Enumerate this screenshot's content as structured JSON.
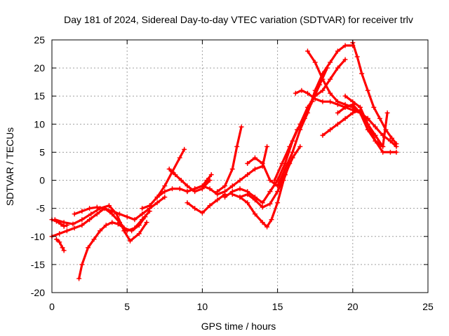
{
  "chart_data": {
    "type": "scatter",
    "title": "Day 181 of 2024, Sidereal Day-to-day VTEC variation (SDTVAR) for receiver trlv",
    "xlabel": "GPS time / hours",
    "ylabel": "SDTVAR / TECUs",
    "xlim": [
      0,
      25
    ],
    "ylim": [
      -20,
      25
    ],
    "xticks": [
      "0",
      "5",
      "10",
      "15",
      "20",
      "25"
    ],
    "yticks": [
      "-20",
      "-15",
      "-10",
      "-5",
      "0",
      "5",
      "10",
      "15",
      "20",
      "25"
    ],
    "grid": true,
    "marker": "+",
    "color": "#ff0000",
    "series": [
      {
        "x": [
          0.0,
          0.3,
          0.6,
          0.8,
          1.0
        ],
        "y": [
          -7,
          -7.3,
          -7.8,
          -8.2,
          -8.0
        ]
      },
      {
        "x": [
          0.3,
          0.5,
          0.7,
          0.8
        ],
        "y": [
          -10.5,
          -11,
          -12,
          -12.5
        ]
      },
      {
        "x": [
          0.0,
          0.5,
          1.0,
          1.5,
          2.0,
          2.5,
          3.0,
          3.5,
          4.0,
          4.5,
          5.0,
          5.5,
          6.0,
          6.5
        ],
        "y": [
          -10,
          -9.5,
          -9,
          -8.5,
          -8,
          -7,
          -6,
          -5,
          -6,
          -7.5,
          -9,
          -8.5,
          -7,
          -5.5
        ]
      },
      {
        "x": [
          0.2,
          0.8,
          1.4,
          2.0,
          2.6,
          3.2,
          3.8,
          4.3,
          4.8,
          5.2,
          5.8,
          6.3
        ],
        "y": [
          -7,
          -7.5,
          -7.8,
          -7,
          -6,
          -5,
          -4.5,
          -6,
          -9,
          -10.8,
          -9.5,
          -7.5
        ]
      },
      {
        "x": [
          1.8,
          2.0,
          2.4,
          2.8,
          3.2,
          3.6,
          4.0,
          4.4,
          4.8,
          5.3,
          5.8,
          6.2
        ],
        "y": [
          -17.5,
          -15,
          -12,
          -10.5,
          -9,
          -8,
          -7.5,
          -7.8,
          -8.5,
          -9,
          -8,
          -6.5
        ]
      },
      {
        "x": [
          1.5,
          2.0,
          2.5,
          3.0,
          3.5,
          4.0,
          4.5,
          5.0,
          5.5,
          6.0,
          6.5,
          7.0,
          7.5
        ],
        "y": [
          -6,
          -5.5,
          -5,
          -4.8,
          -5,
          -5.5,
          -6,
          -6.5,
          -7,
          -6,
          -5,
          -4,
          -3
        ]
      },
      {
        "x": [
          6.0,
          6.5,
          7.0,
          7.5,
          8.0,
          8.5,
          9.0,
          9.5,
          10.0,
          10.5,
          11.0,
          11.5,
          12.0
        ],
        "y": [
          -5,
          -4.5,
          -3,
          -2,
          -1.5,
          -1.5,
          -2,
          -1.5,
          -1,
          -1.5,
          -2.5,
          -2,
          -1
        ]
      },
      {
        "x": [
          7.0,
          7.5,
          8.0,
          8.5,
          8.8
        ],
        "y": [
          -3,
          -1,
          1.5,
          4,
          5.5
        ]
      },
      {
        "x": [
          7.8,
          8.2,
          8.6,
          9.0,
          9.5,
          10.0,
          10.5
        ],
        "y": [
          2,
          1,
          0,
          -1,
          -2,
          -1.5,
          0
        ]
      },
      {
        "x": [
          9.0,
          9.5,
          10.0,
          10.3,
          10.6
        ],
        "y": [
          -2,
          -1.5,
          -1,
          0,
          1
        ]
      },
      {
        "x": [
          9.0,
          9.5,
          10.0,
          10.5,
          11.0,
          11.5
        ],
        "y": [
          -4,
          -5,
          -5.8,
          -4.5,
          -3.5,
          -2.5
        ]
      },
      {
        "x": [
          11.0,
          11.5,
          12.0,
          12.3,
          12.6
        ],
        "y": [
          -2,
          -1,
          2,
          6,
          9.5
        ]
      },
      {
        "x": [
          12.0,
          12.5,
          13.0,
          13.5,
          14.0,
          14.3
        ],
        "y": [
          -1,
          0,
          1,
          2,
          2.5,
          6
        ]
      },
      {
        "x": [
          11.5,
          12.0,
          12.5,
          13.0,
          13.5,
          14.0,
          14.5,
          15.0
        ],
        "y": [
          -3,
          -2,
          -1.5,
          -2,
          -3,
          -4,
          -2,
          0
        ]
      },
      {
        "x": [
          12.0,
          12.5,
          13.0,
          13.5,
          14.0,
          14.3,
          14.6,
          15.0,
          15.4,
          15.8
        ],
        "y": [
          -2.5,
          -3,
          -4,
          -6,
          -7.5,
          -8.3,
          -7,
          -4,
          0,
          3
        ]
      },
      {
        "x": [
          12.5,
          13.0,
          13.5,
          14.0,
          14.5,
          15.0,
          15.5,
          16.0
        ],
        "y": [
          -3,
          -2.5,
          -3.5,
          -4.8,
          -4.2,
          -2,
          1,
          4
        ]
      },
      {
        "x": [
          13.0,
          13.5,
          14.0,
          14.5,
          15.0,
          15.5,
          16.0,
          16.5
        ],
        "y": [
          3,
          4,
          3,
          0,
          -1,
          1,
          4,
          6
        ]
      },
      {
        "x": [
          14.5,
          15.0,
          15.5,
          16.0,
          16.5,
          17.0,
          17.5,
          18.0,
          18.5,
          19.0,
          19.5
        ],
        "y": [
          -2,
          0,
          3,
          7,
          10,
          13,
          15,
          16,
          18,
          20,
          21.5
        ]
      },
      {
        "x": [
          15.0,
          15.5,
          16.0,
          16.5,
          17.0,
          17.5,
          18.0,
          18.5,
          19.0,
          19.5,
          20.0
        ],
        "y": [
          -1,
          2,
          5,
          9,
          12,
          16,
          19,
          21,
          23,
          24,
          24
        ]
      },
      {
        "x": [
          14.8,
          15.3,
          15.8,
          16.3,
          16.8,
          17.3,
          17.8,
          18.3
        ],
        "y": [
          0,
          3,
          6,
          9,
          11,
          14,
          17,
          20
        ]
      },
      {
        "x": [
          16.2,
          16.6,
          17.0,
          17.5,
          18.0,
          18.5,
          19.0,
          19.5,
          20.0,
          20.5,
          21.0
        ],
        "y": [
          15.5,
          16,
          15.5,
          14.5,
          14,
          14,
          13.5,
          13,
          12.5,
          12,
          11
        ]
      },
      {
        "x": [
          17.0,
          17.5,
          18.0,
          18.5,
          19.0,
          19.5,
          20.0,
          20.5,
          21.0,
          21.5,
          22.0,
          22.5,
          22.9
        ],
        "y": [
          23,
          21,
          18,
          15.5,
          14,
          13.5,
          13,
          12,
          11,
          9.5,
          8,
          7,
          6
        ]
      },
      {
        "x": [
          18.0,
          18.5,
          19.0,
          19.5,
          20.0,
          20.5,
          21.0,
          21.5,
          22.0
        ],
        "y": [
          8,
          9,
          10,
          11,
          12,
          12.5,
          10,
          8,
          6
        ]
      },
      {
        "x": [
          20.0,
          20.3,
          20.6,
          21.0,
          21.4,
          21.8,
          22.2,
          22.6,
          22.9
        ],
        "y": [
          24.5,
          22,
          19,
          16,
          13,
          11,
          9,
          7.5,
          6.5
        ]
      },
      {
        "x": [
          19.5,
          20.0,
          20.5,
          21.0,
          21.5,
          22.0,
          22.5,
          22.9
        ],
        "y": [
          15,
          14,
          13,
          10,
          7,
          5,
          5,
          5
        ]
      },
      {
        "x": [
          19.0,
          19.5,
          20.0,
          20.5,
          21.0,
          21.5,
          22.0,
          22.3
        ],
        "y": [
          12,
          13,
          13.5,
          12,
          9,
          7,
          6,
          12
        ]
      }
    ]
  }
}
